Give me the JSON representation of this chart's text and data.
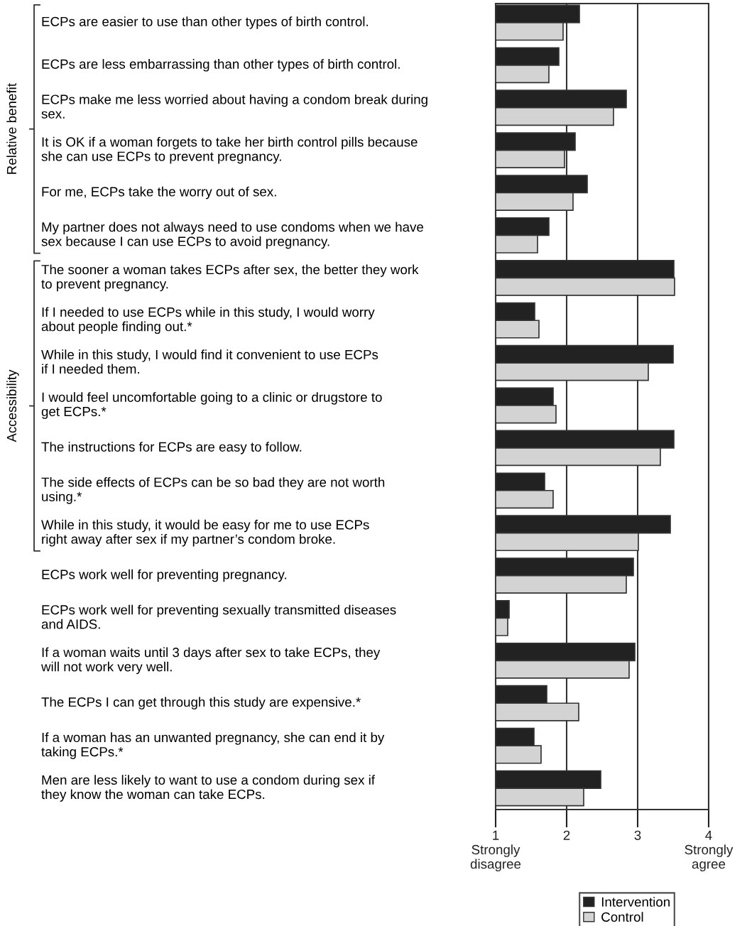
{
  "chart_data": {
    "type": "bar",
    "orientation": "horizontal",
    "categories": [
      "ECPs are easier to use than other types of birth control.",
      "ECPs are less embarrassing than other types of birth control.",
      "ECPs make me less worried about having a condom break during\nsex.",
      "It is OK if a woman forgets to take her birth control pills because\nshe can use ECPs to prevent pregnancy.",
      "For me, ECPs take the worry out of sex.",
      "My partner does not always need to use condoms when we have\nsex because I can use ECPs to avoid pregnancy.",
      "The sooner a woman takes ECPs after sex, the better they work\nto prevent pregnancy.",
      "If I needed to use ECPs while in this study, I would worry\nabout people finding out.*",
      "While in this study, I would find it convenient to use ECPs\nif I needed them.",
      "I would feel uncomfortable going to a clinic or drugstore to\nget ECPs.*",
      "The instructions for ECPs are easy to follow.",
      "The side effects of ECPs can be so bad they are not worth\nusing.*",
      "While in this study, it would be easy for me to use ECPs\nright away after sex if my partner’s condom broke.",
      "ECPs work well for preventing pregnancy.",
      "ECPs work well for preventing sexually transmitted diseases\nand AIDS.",
      "If a woman waits until 3 days after sex to take ECPs, they\nwill not work very well.",
      "The ECPs I can get through this study are expensive.*",
      "If a woman has an unwanted pregnancy, she can end it by\ntaking ECPs.*",
      "Men are less likely to want to use a condom during sex if\nthey know the woman can take ECPs."
    ],
    "series": [
      {
        "name": "Intervention",
        "color": "#222222",
        "values": [
          2.18,
          1.89,
          2.84,
          2.12,
          2.29,
          1.75,
          3.51,
          1.55,
          3.5,
          1.81,
          3.51,
          1.69,
          3.46,
          2.94,
          1.19,
          2.96,
          1.72,
          1.54,
          2.48
        ]
      },
      {
        "name": "Control",
        "color": "#d3d3d3",
        "values": [
          1.95,
          1.75,
          2.66,
          1.97,
          2.09,
          1.59,
          3.52,
          1.61,
          3.15,
          1.85,
          3.32,
          1.81,
          3.01,
          2.84,
          1.17,
          2.88,
          2.17,
          1.64,
          2.24
        ]
      }
    ],
    "xlim": [
      1,
      4
    ],
    "xticks": [
      {
        "value": 1,
        "label": "1\nStrongly\ndisagree"
      },
      2,
      3,
      {
        "value": 4,
        "label": "4\nStrongly\nagree"
      }
    ],
    "annotations": [
      "Relative benefit",
      "Accessibility"
    ],
    "grid": "x",
    "legend": "bottom"
  }
}
